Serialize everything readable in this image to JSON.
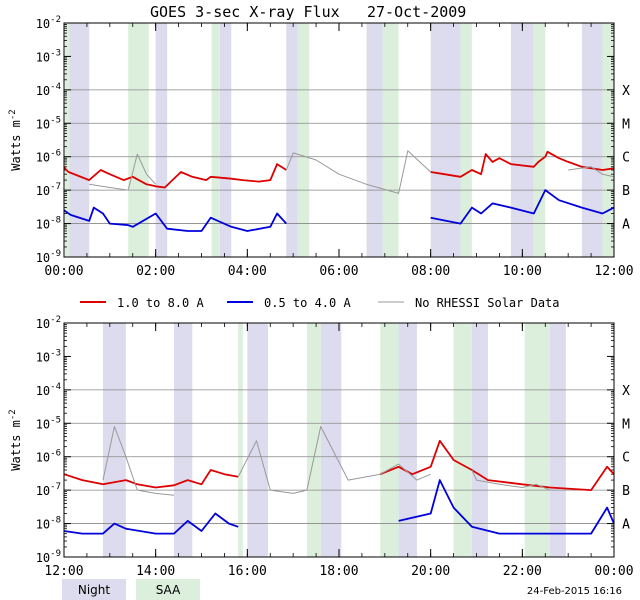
{
  "title": "GOES 3-sec X-ray Flux",
  "date": "27-Oct-2009",
  "footer_timestamp": "24-Feb-2015 16:16",
  "colors": {
    "long": "#dd0000",
    "short": "#0000dd",
    "norhessi": "#999999",
    "night": "#dcdcee",
    "saa": "#dcefdc",
    "grid": "#888888"
  },
  "legend": [
    {
      "key": "long",
      "label": "1.0 to 8.0 A"
    },
    {
      "key": "short",
      "label": "0.5 to 4.0 A"
    },
    {
      "key": "norhessi",
      "label": "No RHESSI Solar Data"
    }
  ],
  "bottom_legend": {
    "night": "Night",
    "saa": "SAA"
  },
  "chart_data": [
    {
      "type": "line",
      "title": "GOES 3-sec X-ray Flux   27-Oct-2009",
      "ylabel": "Watts m-2",
      "yscale": "log",
      "ylim": [
        1e-09,
        0.01
      ],
      "xlim": [
        0,
        12
      ],
      "xtick_labels": [
        "00:00",
        "02:00",
        "04:00",
        "06:00",
        "08:00",
        "10:00",
        "12:00"
      ],
      "ytick_labels": [
        "10-9",
        "10-8",
        "10-7",
        "10-6",
        "10-5",
        "10-4",
        "10-3",
        "10-2"
      ],
      "class_labels": [
        "A",
        "B",
        "C",
        "M",
        "X"
      ],
      "night_intervals": [
        [
          0.1,
          0.55
        ],
        [
          2.0,
          2.25
        ],
        [
          3.4,
          3.65
        ],
        [
          4.85,
          5.1
        ],
        [
          6.6,
          6.95
        ],
        [
          8.0,
          8.65
        ],
        [
          9.75,
          10.25
        ],
        [
          11.3,
          11.75
        ]
      ],
      "saa_intervals": [
        [
          0.02,
          0.12
        ],
        [
          1.4,
          1.85
        ],
        [
          3.22,
          3.4
        ],
        [
          5.1,
          5.35
        ],
        [
          6.95,
          7.3
        ],
        [
          8.65,
          8.9
        ],
        [
          10.25,
          10.5
        ],
        [
          11.75,
          12.0
        ]
      ],
      "series": [
        {
          "name": "1.0 to 8.0 A",
          "key": "long",
          "points": [
            [
              0.0,
              5e-07
            ],
            [
              0.05,
              4e-07
            ],
            [
              0.1,
              3.5e-07
            ],
            [
              0.55,
              2e-07
            ],
            [
              0.8,
              4e-07
            ],
            [
              1.0,
              3e-07
            ],
            [
              1.3,
              2e-07
            ],
            [
              1.5,
              2.5e-07
            ],
            [
              1.8,
              1.5e-07
            ],
            [
              2.0,
              1.3e-07
            ],
            [
              2.2,
              1.2e-07
            ],
            [
              2.55,
              3.5e-07
            ],
            [
              2.8,
              2.5e-07
            ],
            [
              3.1,
              2e-07
            ],
            [
              3.2,
              2.5e-07
            ],
            [
              3.65,
              2.2e-07
            ],
            [
              3.9,
              2e-07
            ],
            [
              4.25,
              1.8e-07
            ],
            [
              4.5,
              2e-07
            ],
            [
              4.65,
              6e-07
            ],
            [
              4.85,
              4e-07
            ]
          ]
        },
        {
          "name": "1.0 to 8.0 A",
          "key": "long",
          "points": [
            [
              8.0,
              3.5e-07
            ],
            [
              8.3,
              3e-07
            ],
            [
              8.65,
              2.5e-07
            ],
            [
              8.9,
              4e-07
            ],
            [
              9.1,
              3e-07
            ],
            [
              9.2,
              1.2e-06
            ],
            [
              9.35,
              7e-07
            ],
            [
              9.5,
              9e-07
            ],
            [
              9.75,
              6e-07
            ],
            [
              10.25,
              5e-07
            ],
            [
              10.35,
              7e-07
            ],
            [
              10.5,
              1e-06
            ],
            [
              10.55,
              1.4e-06
            ],
            [
              10.8,
              9e-07
            ],
            [
              11.0,
              7e-07
            ],
            [
              11.3,
              5e-07
            ],
            [
              11.75,
              4e-07
            ],
            [
              12.0,
              4.5e-07
            ]
          ]
        },
        {
          "name": "0.5 to 4.0 A",
          "key": "short",
          "points": [
            [
              0.0,
              2.5e-08
            ],
            [
              0.1,
              2e-08
            ],
            [
              0.15,
              1.8e-08
            ],
            [
              0.55,
              1.2e-08
            ],
            [
              0.65,
              3e-08
            ],
            [
              0.85,
              2e-08
            ],
            [
              1.0,
              1e-08
            ],
            [
              1.4,
              9e-09
            ],
            [
              1.5,
              8e-09
            ],
            [
              2.0,
              2e-08
            ],
            [
              2.25,
              7e-09
            ],
            [
              2.7,
              6e-09
            ],
            [
              3.0,
              6e-09
            ],
            [
              3.2,
              1.5e-08
            ],
            [
              3.65,
              8e-09
            ],
            [
              4.0,
              6e-09
            ],
            [
              4.5,
              8e-09
            ],
            [
              4.65,
              2e-08
            ],
            [
              4.85,
              1e-08
            ]
          ]
        },
        {
          "name": "0.5 to 4.0 A",
          "key": "short",
          "points": [
            [
              8.0,
              1.5e-08
            ],
            [
              8.65,
              1e-08
            ],
            [
              8.9,
              3e-08
            ],
            [
              9.1,
              2e-08
            ],
            [
              9.35,
              4e-08
            ],
            [
              9.75,
              3e-08
            ],
            [
              10.25,
              2e-08
            ],
            [
              10.5,
              1e-07
            ],
            [
              10.8,
              5e-08
            ],
            [
              11.3,
              3e-08
            ],
            [
              11.75,
              2e-08
            ],
            [
              12.0,
              3e-08
            ]
          ]
        },
        {
          "name": "No RHESSI Solar Data",
          "key": "norhessi",
          "points": [
            [
              0.55,
              1.5e-07
            ],
            [
              1.0,
              1.2e-07
            ],
            [
              1.4,
              1e-07
            ],
            [
              1.6,
              1.2e-06
            ],
            [
              1.8,
              3e-07
            ],
            [
              2.0,
              1.5e-07
            ]
          ]
        },
        {
          "name": "No RHESSI Solar Data",
          "key": "norhessi",
          "points": [
            [
              4.85,
              4e-07
            ],
            [
              5.0,
              1.3e-06
            ],
            [
              5.5,
              8e-07
            ],
            [
              6.0,
              3e-07
            ],
            [
              6.6,
              1.5e-07
            ],
            [
              7.3,
              8e-08
            ],
            [
              7.5,
              1.5e-06
            ],
            [
              8.0,
              3.5e-07
            ]
          ]
        },
        {
          "name": "No RHESSI Solar Data",
          "key": "norhessi",
          "points": [
            [
              11.0,
              4e-07
            ],
            [
              11.5,
              5e-07
            ],
            [
              11.75,
              3e-07
            ],
            [
              12.0,
              2.5e-07
            ]
          ]
        }
      ]
    },
    {
      "type": "line",
      "ylabel": "Watts m-2",
      "yscale": "log",
      "ylim": [
        1e-09,
        0.01
      ],
      "xlim": [
        12,
        24
      ],
      "xtick_labels": [
        "12:00",
        "14:00",
        "16:00",
        "18:00",
        "20:00",
        "22:00",
        "00:00"
      ],
      "ytick_labels": [
        "10-9",
        "10-8",
        "10-7",
        "10-6",
        "10-5",
        "10-4",
        "10-3",
        "10-2"
      ],
      "class_labels": [
        "A",
        "B",
        "C",
        "M",
        "X"
      ],
      "night_intervals": [
        [
          12.85,
          13.35
        ],
        [
          14.4,
          14.8
        ],
        [
          16.0,
          16.45
        ],
        [
          17.6,
          18.05
        ],
        [
          19.3,
          19.7
        ],
        [
          20.9,
          21.25
        ],
        [
          22.6,
          22.95
        ]
      ],
      "saa_intervals": [
        [
          15.8,
          15.9
        ],
        [
          17.3,
          17.6
        ],
        [
          18.9,
          19.3
        ],
        [
          20.5,
          20.9
        ],
        [
          22.05,
          22.6
        ]
      ],
      "series": [
        {
          "name": "1.0 to 8.0 A",
          "key": "long",
          "points": [
            [
              12.0,
              3e-07
            ],
            [
              12.4,
              2e-07
            ],
            [
              12.85,
              1.5e-07
            ],
            [
              13.35,
              2e-07
            ],
            [
              13.6,
              1.5e-07
            ],
            [
              14.0,
              1.2e-07
            ],
            [
              14.4,
              1.4e-07
            ],
            [
              14.7,
              2e-07
            ],
            [
              15.0,
              1.5e-07
            ],
            [
              15.2,
              4e-07
            ],
            [
              15.5,
              3e-07
            ],
            [
              15.8,
              2.5e-07
            ]
          ]
        },
        {
          "name": "1.0 to 8.0 A",
          "key": "long",
          "points": [
            [
              18.9,
              3e-07
            ],
            [
              19.3,
              5e-07
            ],
            [
              19.6,
              3e-07
            ],
            [
              20.0,
              5e-07
            ],
            [
              20.2,
              3e-06
            ],
            [
              20.5,
              8e-07
            ],
            [
              20.9,
              4e-07
            ],
            [
              21.25,
              2e-07
            ],
            [
              22.0,
              1.5e-07
            ],
            [
              22.6,
              1.2e-07
            ],
            [
              23.5,
              1e-07
            ],
            [
              23.85,
              5e-07
            ],
            [
              24.0,
              3e-07
            ]
          ]
        },
        {
          "name": "0.5 to 4.0 A",
          "key": "short",
          "points": [
            [
              12.0,
              6e-09
            ],
            [
              12.4,
              5e-09
            ],
            [
              12.85,
              5e-09
            ],
            [
              13.1,
              1e-08
            ],
            [
              13.35,
              7e-09
            ],
            [
              14.0,
              5e-09
            ],
            [
              14.4,
              5e-09
            ],
            [
              14.7,
              1.2e-08
            ],
            [
              15.0,
              6e-09
            ],
            [
              15.3,
              2e-08
            ],
            [
              15.6,
              1e-08
            ],
            [
              15.8,
              8e-09
            ]
          ]
        },
        {
          "name": "0.5 to 4.0 A",
          "key": "short",
          "points": [
            [
              19.3,
              1.2e-08
            ],
            [
              20.0,
              2e-08
            ],
            [
              20.2,
              2e-07
            ],
            [
              20.5,
              3e-08
            ],
            [
              20.9,
              8e-09
            ],
            [
              21.5,
              5e-09
            ],
            [
              22.0,
              5e-09
            ],
            [
              23.0,
              5e-09
            ],
            [
              23.5,
              5e-09
            ],
            [
              23.85,
              3e-08
            ],
            [
              24.0,
              1e-08
            ]
          ]
        },
        {
          "name": "No RHESSI Solar Data",
          "key": "norhessi",
          "points": [
            [
              12.85,
              2e-07
            ],
            [
              13.1,
              8e-06
            ],
            [
              13.35,
              1e-06
            ],
            [
              13.6,
              1e-07
            ],
            [
              14.0,
              8e-08
            ],
            [
              14.4,
              7e-08
            ]
          ]
        },
        {
          "name": "No RHESSI Solar Data",
          "key": "norhessi",
          "points": [
            [
              15.8,
              2.5e-07
            ],
            [
              16.2,
              3e-06
            ],
            [
              16.5,
              1e-07
            ],
            [
              17.0,
              8e-08
            ],
            [
              17.3,
              1e-07
            ],
            [
              17.6,
              8e-06
            ],
            [
              18.2,
              2e-07
            ],
            [
              18.9,
              3e-07
            ],
            [
              19.3,
              6e-07
            ],
            [
              19.7,
              2e-07
            ],
            [
              20.0,
              3e-07
            ]
          ]
        },
        {
          "name": "No RHESSI Solar Data",
          "key": "norhessi",
          "points": [
            [
              20.9,
              4e-07
            ],
            [
              21.0,
              2e-07
            ],
            [
              21.5,
              1.5e-07
            ],
            [
              22.0,
              1.2e-07
            ],
            [
              22.3,
              1.5e-07
            ],
            [
              22.6,
              1e-07
            ]
          ]
        }
      ]
    }
  ]
}
